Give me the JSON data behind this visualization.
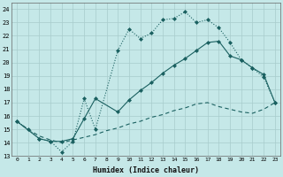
{
  "bg_color": "#c5e8e8",
  "grid_color": "#a8cccc",
  "line_color": "#1a6060",
  "xlabel": "Humidex (Indice chaleur)",
  "xlim": [
    -0.5,
    23.5
  ],
  "ylim": [
    13,
    24.5
  ],
  "yticks": [
    13,
    14,
    15,
    16,
    17,
    18,
    19,
    20,
    21,
    22,
    23,
    24
  ],
  "xticks": [
    0,
    1,
    2,
    3,
    4,
    5,
    6,
    7,
    8,
    9,
    10,
    11,
    12,
    13,
    14,
    15,
    16,
    17,
    18,
    19,
    20,
    21,
    22,
    23
  ],
  "line1_x": [
    0,
    1,
    2,
    3,
    4,
    5,
    6,
    7,
    9,
    10,
    11,
    12,
    13,
    14,
    15,
    16,
    17,
    18,
    19,
    20,
    21,
    22,
    23
  ],
  "line1_y": [
    15.6,
    15.0,
    14.3,
    14.1,
    13.3,
    14.1,
    17.3,
    15.0,
    20.9,
    22.5,
    21.8,
    22.2,
    23.2,
    23.3,
    23.8,
    23.0,
    23.2,
    22.6,
    21.5,
    20.2,
    19.6,
    18.9,
    17.0
  ],
  "line2_x": [
    0,
    2,
    3,
    4,
    5,
    6,
    7,
    9,
    10,
    11,
    12,
    13,
    14,
    15,
    16,
    17,
    18,
    19,
    20,
    21,
    22,
    23
  ],
  "line2_y": [
    15.6,
    14.3,
    14.1,
    14.1,
    14.3,
    15.8,
    17.3,
    16.3,
    17.2,
    17.9,
    18.5,
    19.2,
    19.8,
    20.3,
    20.9,
    21.5,
    21.6,
    20.5,
    20.2,
    19.6,
    19.1,
    17.0
  ],
  "line3_x": [
    0,
    1,
    2,
    3,
    4,
    5,
    6,
    7,
    8,
    9,
    10,
    11,
    12,
    13,
    14,
    15,
    16,
    17,
    18,
    19,
    20,
    21,
    22,
    23
  ],
  "line3_y": [
    15.6,
    15.0,
    14.5,
    14.2,
    14.0,
    14.2,
    14.4,
    14.6,
    14.9,
    15.1,
    15.4,
    15.6,
    15.9,
    16.1,
    16.4,
    16.6,
    16.9,
    17.0,
    16.7,
    16.5,
    16.3,
    16.2,
    16.5,
    17.0
  ]
}
